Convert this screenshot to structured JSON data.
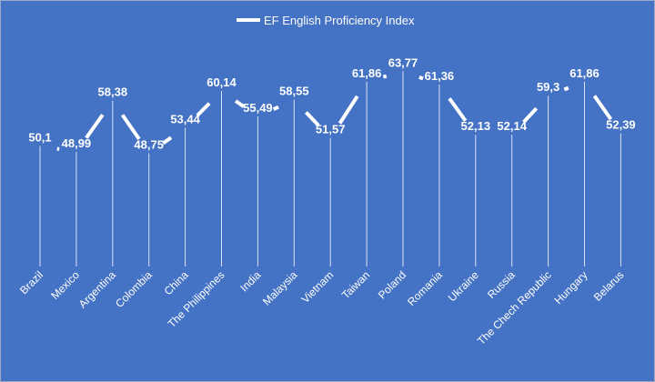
{
  "chart_data": {
    "type": "line",
    "categories": [
      "Brazil",
      "Mexico",
      "Argentina",
      "Colombia",
      "China",
      "The Philippines",
      "India",
      "Malaysia",
      "Vietnam",
      "Taiwan",
      "Poland",
      "Romania",
      "Ukraine",
      "Russia",
      "The Chech Republic",
      "Hungary",
      "Belarus"
    ],
    "value_labels": [
      "50,1",
      "48,99",
      "58,38",
      "48,75",
      "53,44",
      "60,14",
      "55,49",
      "58,55",
      "51,57",
      "61,86",
      "63,77",
      "61,36",
      "52,13",
      "52,14",
      "59,3",
      "61,86",
      "52,39"
    ],
    "series": [
      {
        "name": "EF English Proficiency Index",
        "values": [
          50.1,
          48.99,
          58.38,
          48.75,
          53.44,
          60.14,
          55.49,
          58.55,
          51.57,
          61.86,
          63.77,
          61.36,
          52.13,
          52.14,
          59.3,
          61.86,
          52.39
        ]
      }
    ],
    "legend_position": "top",
    "drop_lines": true,
    "grid": false,
    "colors": {
      "background": "#4472c4",
      "line": "#ffffff",
      "text": "#ffffff"
    }
  }
}
